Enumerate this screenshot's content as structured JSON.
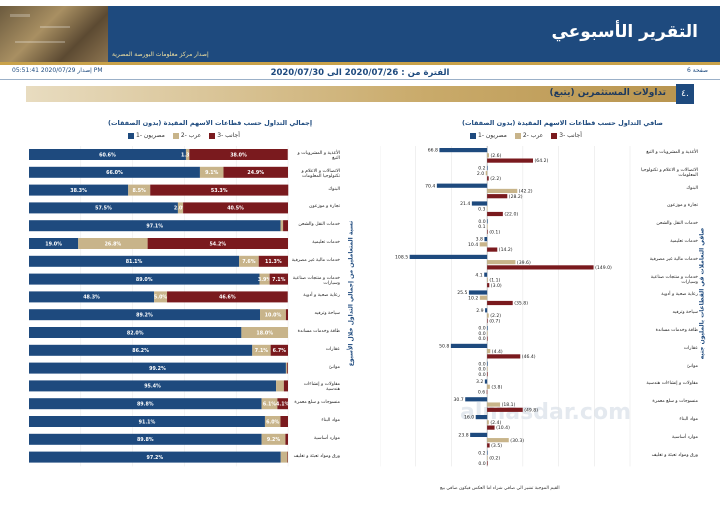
{
  "header": {
    "title": "التقرير الأسبوعي",
    "subtitle": "إصدار مركز معلومات البورصة المصرية"
  },
  "meta": {
    "page": "صفحة 6",
    "issued": "إصدار 2020/07/29 05:51:41 PM",
    "period": "الفترة من : 2020/07/26 الى 2020/07/30"
  },
  "section": {
    "number": "٤.",
    "title": "تداولات المستثمرين (يتبع)"
  },
  "colors": {
    "egyptians": "#1e4a7e",
    "arabs": "#c8b48a",
    "foreigners": "#7a1a1e",
    "header": "#1e4a7e"
  },
  "categories": [
    "البنوك",
    "الاتصالات و الاعلام و تكنولوجيا المعلومات",
    "الأغذية و المشروبات و التبغ",
    "خدمات النقل والشحن",
    "اتصالات و إعلام",
    "تجارة و موزعون",
    "خدمات تعليمية",
    "خدمات مالية غير مصرفية",
    "خدمات و منتجات صناعية وسيارات",
    "رعاية صحية و أدوية",
    "سياحة وترفيه",
    "طاقة وخدمات مساندة",
    "عقارات",
    "منسوجات و سلع معمرة",
    "مقاولات و إنشاءات هندسية",
    "موارد أساسية",
    "مواد البناء",
    "ورق ومواد تعبئة و تغليف"
  ],
  "left_chart": {
    "title": "صافي التداول حسب قطاعات الاسهم المقيدة (بدون الصفقات)",
    "legend": [
      "مصريون -1",
      "عرب -2",
      "أجانب -3"
    ],
    "axis_ticks": [
      "150.0",
      "100.0",
      "50.0",
      "0.0",
      "(50.0)",
      "(100.0)",
      "(150.0)",
      "(200.0)"
    ],
    "note": "القيم الموجبة تشير الي صافي شراء اما العكس فيكون صافي بيع",
    "side_label": "صافي التعاملات في القطاعات بالمليون جنيه"
  },
  "right_chart": {
    "title": "إجمالي التداول حسب قطاعات الاسهم المقيدة (بدون الصفقات)",
    "legend": [
      "مصريون -1",
      "عرب -2",
      "أجانب -3"
    ],
    "axis_ticks": [
      "80%",
      "60%",
      "40%",
      "20%",
      "0%"
    ],
    "side_label": "نسبة المتعاملين من إجمالي التداول خلال الأسبوع"
  },
  "chart_data": [
    {
      "type": "bar",
      "title": "صافي التداول حسب قطاعات الاسهم المقيدة (بدون الصفقات)",
      "categories": [
        "الأغذية و المشروبات و التبغ",
        "الاتصالات و الاعلام و تكنولوجيا المعلومات",
        "البنوك",
        "تجارة و موزعون",
        "خدمات النقل والشحن",
        "خدمات تعليمية",
        "خدمات مالية غير مصرفية",
        "خدمات و منتجات صناعية وسيارات",
        "رعاية صحية و أدوية",
        "سياحة وترفيه",
        "طاقة وخدمات مساندة",
        "عقارات",
        "موانئ",
        "مقاولات و إنشاءات هندسية",
        "منسوجات و سلع معمرة",
        "مواد البناء",
        "موارد أساسية",
        "ورق ومواد تعبئة و تغليف"
      ],
      "series": [
        {
          "name": "مصريون -1",
          "values": [
            66.8,
            0.2,
            70.4,
            21.4,
            0.0,
            3.8,
            108.5,
            4.1,
            25.5,
            2.9,
            0.0,
            50.8,
            0.0,
            3.2,
            30.7,
            16.0,
            23.8,
            0.2
          ]
        },
        {
          "name": "عرب -2",
          "values": [
            -2.6,
            2.0,
            -42.2,
            0.3,
            0.1,
            10.4,
            -39.6,
            -1.1,
            10.2,
            -2.2,
            0.0,
            -4.4,
            0.0,
            -3.8,
            -18.1,
            -2.4,
            -30.3,
            -0.2
          ]
        },
        {
          "name": "أجانب -3",
          "values": [
            -64.2,
            -2.2,
            -28.2,
            -22.0,
            -0.1,
            -14.2,
            -149.0,
            -3.0,
            -35.8,
            -0.7,
            0.0,
            -46.4,
            0.0,
            0.6,
            -49.8,
            -10.4,
            -3.5,
            0.0
          ]
        }
      ],
      "xlim": [
        -200,
        150
      ]
    },
    {
      "type": "bar",
      "title": "إجمالي التداول حسب قطاعات الاسهم المقيدة (بدون الصفقات)",
      "categories": [
        "الأغذية و المشروبات و التبغ",
        "الاتصالات و الاعلام و تكنولوجيا المعلومات",
        "البنوك",
        "تجارة و موزعون",
        "خدمات النقل والشحن",
        "خدمات تعليمية",
        "خدمات مالية غير مصرفية",
        "خدمات و منتجات صناعية وسيارات",
        "رعاية صحية و أدوية",
        "سياحة وترفيه",
        "طاقة وخدمات مساندة",
        "عقارات",
        "موانئ",
        "مقاولات و إنشاءات هندسية",
        "منسوجات و سلع معمرة",
        "مواد البناء",
        "موارد أساسية",
        "ورق ومواد تعبئة و تغليف"
      ],
      "series": [
        {
          "name": "مصريون -1",
          "values": [
            60.6,
            66.0,
            38.3,
            57.5,
            97.1,
            19.0,
            81.1,
            89.0,
            48.3,
            89.2,
            82.0,
            86.2,
            99.2,
            95.4,
            89.8,
            91.1,
            89.8,
            97.2
          ]
        },
        {
          "name": "عرب -2",
          "values": [
            1.3,
            9.1,
            8.5,
            2.0,
            1.0,
            26.8,
            7.6,
            3.9,
            5.0,
            10.0,
            18.0,
            7.1,
            0.5,
            3.0,
            6.1,
            6.0,
            9.2,
            2.6
          ]
        },
        {
          "name": "أجانب -3",
          "values": [
            38.0,
            24.9,
            53.3,
            40.5,
            1.9,
            54.2,
            11.3,
            7.1,
            46.6,
            0.8,
            0.0,
            6.7,
            0.3,
            1.6,
            4.1,
            2.9,
            1.0,
            0.2
          ]
        }
      ],
      "value_labels": [
        [
          "60.6%",
          "1.3%",
          "38.0%"
        ],
        [
          "66.0%",
          "9.1%",
          "24.9%"
        ],
        [
          "38.3%",
          "8.5%",
          "53.3%"
        ],
        [
          "57.5%",
          "2.0%",
          "40.5%"
        ],
        [
          "97.1%",
          "",
          ""
        ],
        [
          "19.0%",
          "26.8%",
          "54.2%"
        ],
        [
          "81.1%",
          "7.6%",
          "11.3%"
        ],
        [
          "89.0%",
          "3.9%",
          "7.1%"
        ],
        [
          "48.3%",
          "5.0%",
          "46.6%"
        ],
        [
          "89.2%",
          "10.0%",
          ""
        ],
        [
          "82.0%",
          "18.0%",
          ""
        ],
        [
          "86.2%",
          "7.1%",
          "6.7%"
        ],
        [
          "99.2%",
          "",
          ""
        ],
        [
          "95.4%",
          "",
          ""
        ],
        [
          "89.8%",
          "6.1%",
          "4.1%"
        ],
        [
          "91.1%",
          "6.0%",
          ""
        ],
        [
          "89.8%",
          "9.2%",
          ""
        ],
        [
          "97.2%",
          "",
          ""
        ]
      ],
      "xlim": [
        0,
        100
      ]
    }
  ]
}
